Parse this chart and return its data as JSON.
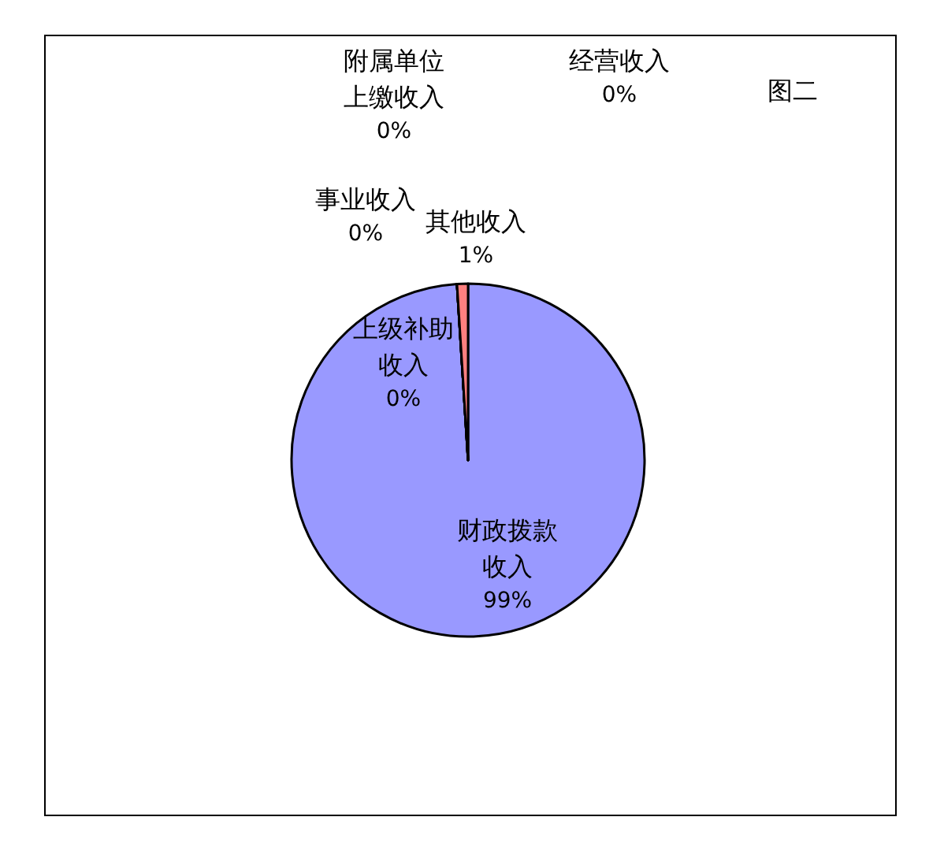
{
  "chart_data": {
    "type": "pie",
    "title": "图二",
    "categories": [
      "财政拨款收入",
      "上级补助收入",
      "事业收入",
      "附属单位上缴收入",
      "经营收入",
      "其他收入"
    ],
    "values": [
      99,
      0,
      0,
      0,
      0,
      1
    ],
    "colors": [
      "#9999ff",
      "#993366",
      "#ffffcc",
      "#ccffff",
      "#660066",
      "#ff8080"
    ],
    "value_labels": [
      "99%",
      "0%",
      "0%",
      "0%",
      "0%",
      "1%"
    ],
    "legend": false
  }
}
